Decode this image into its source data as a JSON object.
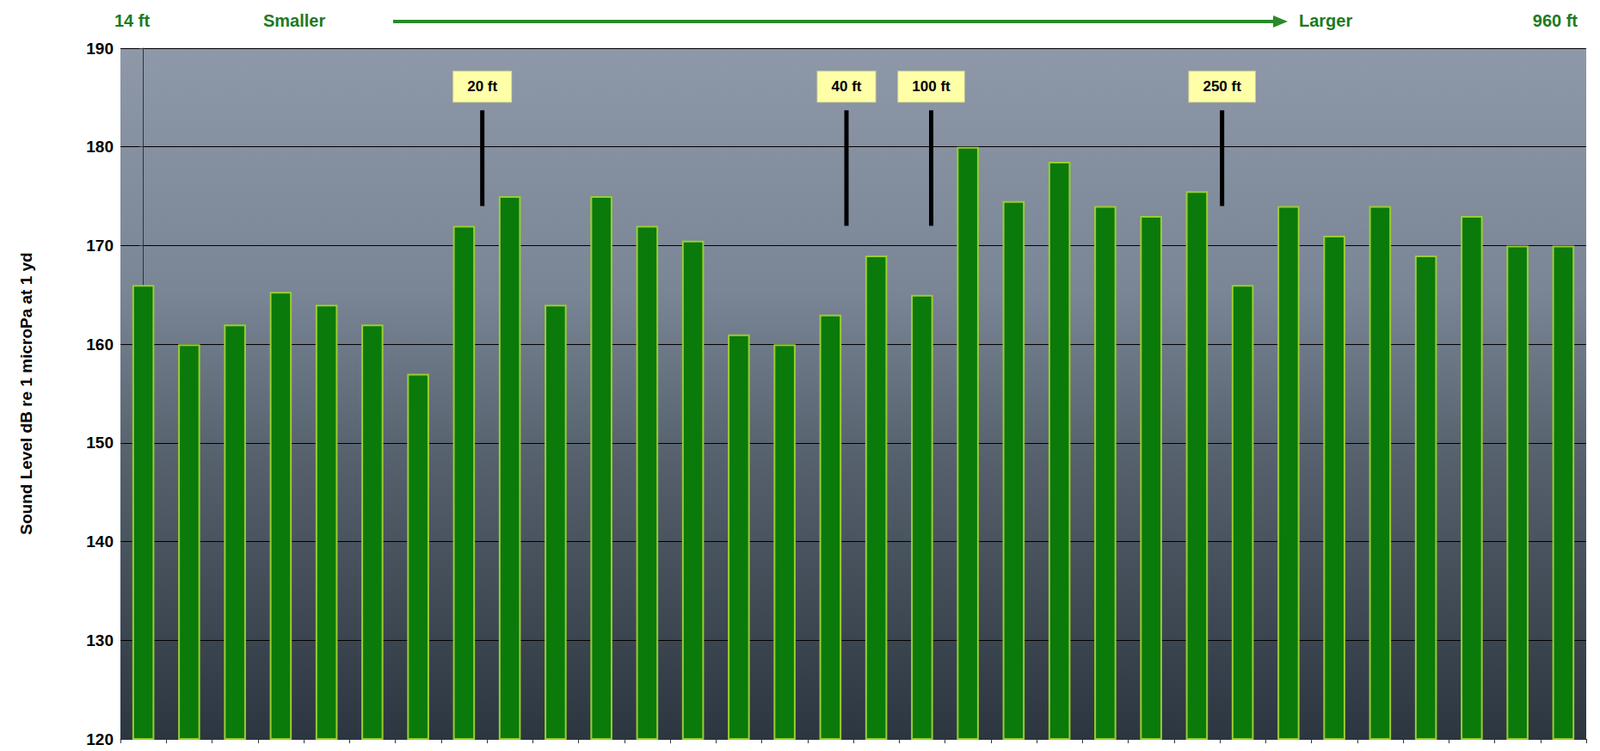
{
  "chart_data": {
    "type": "bar",
    "header": [
      "14 ft",
      "Smaller",
      "Larger",
      "960 ft"
    ],
    "y_label": "Sound Level dB re 1 microPa at 1 yd",
    "categories": [
      null,
      null,
      null,
      null,
      null,
      null,
      null,
      null,
      null,
      null,
      null,
      null,
      null,
      null,
      null,
      null,
      null,
      null,
      null,
      null,
      null,
      null,
      null,
      null,
      null,
      null,
      null,
      null,
      null,
      null,
      null,
      null
    ],
    "values": [
      166,
      160,
      162,
      165.3,
      164,
      162,
      157,
      172,
      175,
      164,
      175,
      172,
      170.5,
      161,
      160,
      163,
      169,
      165,
      180,
      174.5,
      178.5,
      174,
      173,
      175.5,
      166,
      174,
      171,
      174,
      169,
      173,
      170,
      170
    ],
    "color": "#0a7a0a",
    "ylim": [
      120,
      190
    ],
    "yticks": [
      120,
      130,
      140,
      150,
      160,
      170,
      180,
      190
    ],
    "grid": true,
    "tick_labels": "y",
    "annotations": [
      {
        "text": "20 ft",
        "x": 7.4,
        "y": 174
      },
      {
        "text": "40 ft",
        "x": 15.35,
        "y": 172
      },
      {
        "text": "100 ft",
        "x": 17.2,
        "y": 172
      },
      {
        "text": "250 ft",
        "x": 23.55,
        "y": 174
      }
    ]
  }
}
